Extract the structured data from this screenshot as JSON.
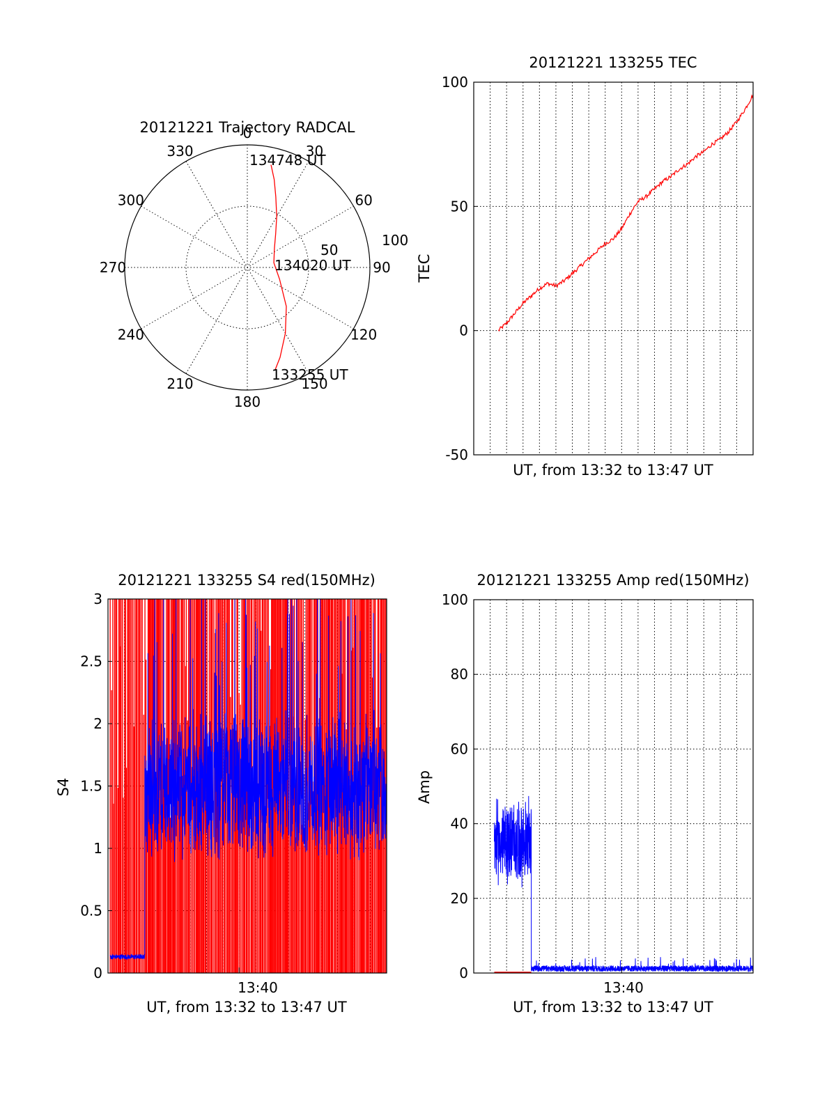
{
  "colors": {
    "red": "#ff0000",
    "blue": "#0000ff",
    "axis": "#000000"
  },
  "chart_data": [
    {
      "id": "polar",
      "type": "scatter",
      "title": "20121221 Trajectory RADCAL",
      "azimuth_labels": [
        "0",
        "30",
        "60",
        "90",
        "120",
        "150",
        "180",
        "210",
        "240",
        "270",
        "300",
        "330"
      ],
      "radial_labels": [
        "50",
        "100"
      ],
      "rlim": [
        0,
        100
      ],
      "grid": true,
      "trajectory": {
        "azimuth": [
          13,
          17,
          22,
          30,
          40,
          55,
          80,
          110,
          135,
          150,
          160,
          165
        ],
        "zenith": [
          86,
          75,
          62,
          48,
          36,
          27,
          22,
          28,
          45,
          62,
          78,
          87
        ]
      },
      "annotations": [
        {
          "text": "134748 UT",
          "azimuth": 13,
          "zenith": 86
        },
        {
          "text": "134020 UT",
          "azimuth": 80,
          "zenith": 22
        },
        {
          "text": "133255 UT",
          "azimuth": 165,
          "zenith": 87
        }
      ]
    },
    {
      "id": "tec",
      "type": "line",
      "title": "20121221 133255 TEC",
      "xlabel": "UT, from 13:32 to 13:47 UT",
      "ylabel": "TEC",
      "ylim": [
        -50,
        100
      ],
      "yticks": [
        -50,
        0,
        50,
        100
      ],
      "xlim": [
        "13:31:00",
        "13:48:00"
      ],
      "grid": true,
      "series": [
        {
          "color": "red",
          "x": [
            "13:32:30",
            "13:33:00",
            "13:33:30",
            "13:34:00",
            "13:34:30",
            "13:35:00",
            "13:35:30",
            "13:36:00",
            "13:36:30",
            "13:37:00",
            "13:37:30",
            "13:38:00",
            "13:38:30",
            "13:39:00",
            "13:39:30",
            "13:40:00",
            "13:40:30",
            "13:41:00",
            "13:41:30",
            "13:42:00",
            "13:42:30",
            "13:43:00",
            "13:43:30",
            "13:44:00",
            "13:44:30",
            "13:45:00",
            "13:45:30",
            "13:46:00",
            "13:46:30",
            "13:47:00",
            "13:47:30",
            "13:48:00"
          ],
          "y": [
            0,
            3,
            7,
            11,
            14,
            17,
            19,
            18,
            20,
            23,
            26,
            29,
            32,
            35,
            37,
            41,
            47,
            52,
            54,
            57,
            60,
            62,
            65,
            67,
            70,
            72,
            75,
            77,
            80,
            84,
            89,
            95
          ]
        }
      ]
    },
    {
      "id": "s4",
      "type": "line",
      "title": "20121221 133255 S4 red(150MHz)",
      "xlabel": "UT, from 13:32 to 13:47 UT",
      "ylabel": "S4",
      "ylim": [
        0,
        3
      ],
      "yticks": [
        0,
        0.5,
        1,
        1.5,
        2,
        2.5,
        3
      ],
      "ytick_labels": [
        "0",
        "0.5",
        "1",
        "1.5",
        "2",
        "2.5",
        "3"
      ],
      "xtick_label": "13:40",
      "xlim": [
        "13:32:00",
        "13:49:00"
      ],
      "grid": true,
      "series": [
        {
          "color": "red",
          "note": "vertical spikes 0–3 from 13:32:30 onward"
        },
        {
          "color": "blue",
          "segments": [
            {
              "from": "13:32:08",
              "to": "13:34:15",
              "mean": 0.13,
              "spread": 0.02
            },
            {
              "from": "13:34:15",
              "to": "13:49:00",
              "mean": 1.5,
              "spread": 0.3
            }
          ]
        }
      ]
    },
    {
      "id": "amp",
      "type": "line",
      "title": "20121221 133255 Amp red(150MHz)",
      "xlabel": "UT, from 13:32 to 13:47 UT",
      "ylabel": "Amp",
      "ylim": [
        0,
        100
      ],
      "yticks": [
        0,
        20,
        40,
        60,
        80,
        100
      ],
      "xtick_label": "13:40",
      "xlim": [
        "13:31:00",
        "13:48:00"
      ],
      "grid": true,
      "series": [
        {
          "color": "red",
          "segments": [
            {
              "from": "13:32:15",
              "to": "13:34:30",
              "value": 0.2
            }
          ]
        },
        {
          "color": "blue",
          "segments": [
            {
              "from": "13:32:15",
              "to": "13:34:30",
              "mean": 35,
              "spread": 9
            },
            {
              "from": "13:34:30",
              "to": "13:48:00",
              "mean": 1.2,
              "spread": 0.8
            }
          ]
        }
      ]
    }
  ]
}
